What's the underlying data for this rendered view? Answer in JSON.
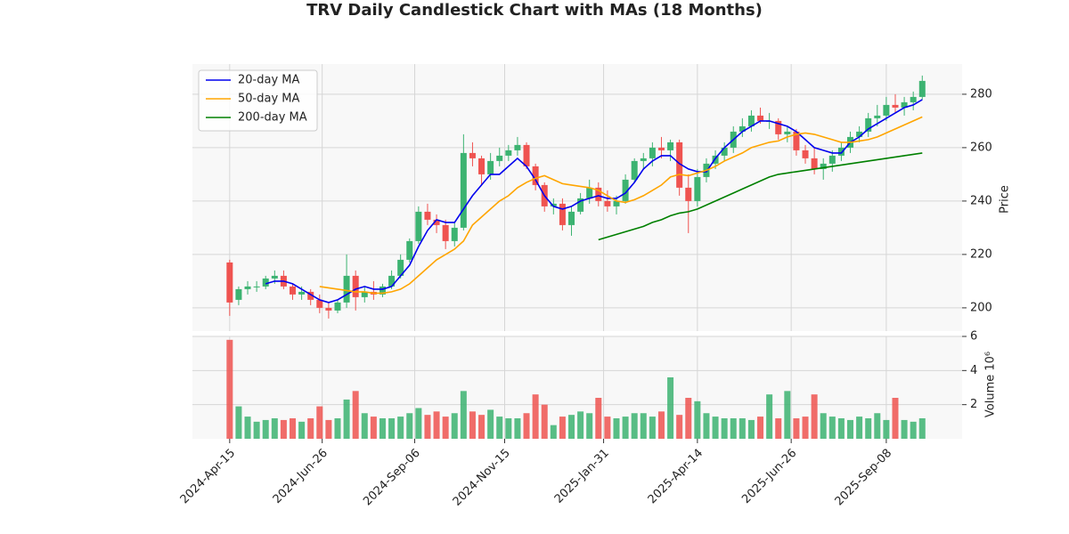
{
  "chart_data": {
    "type": "candlestick",
    "title": "TRV Daily Candlestick Chart with MAs (18 Months)",
    "y_label": "Price",
    "volume_label": "Volume  10⁶",
    "up_color": "#3cb371",
    "down_color": "#ef5350",
    "grid": true,
    "legend": "upper left",
    "x": [
      "2024-04-15",
      "2024-04-22",
      "2024-04-29",
      "2024-05-06",
      "2024-05-13",
      "2024-05-20",
      "2024-05-27",
      "2024-06-03",
      "2024-06-10",
      "2024-06-17",
      "2024-06-24",
      "2024-07-01",
      "2024-07-08",
      "2024-07-15",
      "2024-07-22",
      "2024-07-29",
      "2024-08-05",
      "2024-08-12",
      "2024-08-19",
      "2024-08-26",
      "2024-09-02",
      "2024-09-09",
      "2024-09-16",
      "2024-09-23",
      "2024-09-30",
      "2024-10-07",
      "2024-10-14",
      "2024-10-21",
      "2024-10-28",
      "2024-11-04",
      "2024-11-11",
      "2024-11-18",
      "2024-11-25",
      "2024-12-02",
      "2024-12-09",
      "2024-12-16",
      "2024-12-23",
      "2024-12-30",
      "2025-01-06",
      "2025-01-13",
      "2025-01-20",
      "2025-01-27",
      "2025-02-03",
      "2025-02-10",
      "2025-02-17",
      "2025-02-24",
      "2025-03-03",
      "2025-03-10",
      "2025-03-17",
      "2025-03-24",
      "2025-03-31",
      "2025-04-07",
      "2025-04-14",
      "2025-04-21",
      "2025-04-28",
      "2025-05-05",
      "2025-05-12",
      "2025-05-19",
      "2025-05-26",
      "2025-06-02",
      "2025-06-09",
      "2025-06-16",
      "2025-06-23",
      "2025-06-30",
      "2025-07-07",
      "2025-07-14",
      "2025-07-21",
      "2025-07-28",
      "2025-08-04",
      "2025-08-11",
      "2025-08-18",
      "2025-08-25",
      "2025-09-01",
      "2025-09-08",
      "2025-09-15",
      "2025-09-22",
      "2025-09-29",
      "2025-10-06"
    ],
    "open": [
      217,
      203,
      207,
      208,
      208,
      211,
      212,
      208,
      205,
      206,
      203,
      200,
      199,
      202,
      212,
      204,
      206,
      205,
      208,
      212,
      218,
      225,
      236,
      233,
      231,
      225,
      230,
      258,
      256,
      250,
      255,
      257,
      259,
      261,
      253,
      246,
      238,
      239,
      231,
      236,
      241,
      245,
      240,
      238,
      240,
      248,
      255,
      256,
      260,
      259,
      262,
      245,
      240,
      249,
      254,
      257,
      260,
      266,
      268,
      272,
      270,
      270,
      265,
      266,
      259,
      256,
      252,
      254,
      257,
      260,
      264,
      266,
      271,
      272,
      276,
      275,
      277,
      279
    ],
    "high": [
      218,
      208,
      210,
      210,
      212,
      214,
      214,
      209,
      208,
      207,
      205,
      202,
      203,
      220,
      214,
      208,
      210,
      209,
      214,
      220,
      226,
      238,
      239,
      235,
      233,
      232,
      265,
      262,
      257,
      258,
      260,
      261,
      264,
      262,
      254,
      247,
      241,
      241,
      238,
      243,
      248,
      247,
      244,
      242,
      250,
      256,
      258,
      262,
      264,
      263,
      263,
      250,
      252,
      256,
      259,
      262,
      268,
      271,
      274,
      275,
      273,
      271,
      268,
      267,
      261,
      260,
      256,
      259,
      262,
      266,
      268,
      273,
      276,
      279,
      280,
      279,
      281,
      287
    ],
    "low": [
      197,
      201,
      205,
      206,
      207,
      209,
      207,
      203,
      203,
      201,
      198,
      196,
      198,
      200,
      199,
      202,
      203,
      204,
      207,
      211,
      217,
      224,
      231,
      228,
      222,
      223,
      229,
      253,
      246,
      248,
      253,
      255,
      257,
      252,
      244,
      236,
      235,
      229,
      227,
      235,
      239,
      238,
      236,
      235,
      239,
      247,
      252,
      253,
      256,
      255,
      242,
      228,
      238,
      247,
      252,
      255,
      258,
      264,
      266,
      269,
      267,
      263,
      262,
      257,
      254,
      250,
      248,
      251,
      255,
      258,
      262,
      264,
      268,
      270,
      273,
      272,
      274,
      278
    ],
    "close": [
      202,
      207,
      208,
      208,
      211,
      212,
      208,
      205,
      206,
      203,
      200,
      199,
      202,
      212,
      204,
      206,
      205,
      208,
      212,
      218,
      225,
      236,
      233,
      231,
      225,
      230,
      258,
      256,
      250,
      255,
      257,
      259,
      261,
      253,
      246,
      238,
      239,
      231,
      236,
      241,
      245,
      240,
      238,
      240,
      248,
      255,
      256,
      260,
      259,
      262,
      245,
      240,
      249,
      254,
      257,
      260,
      266,
      268,
      272,
      270,
      270,
      265,
      266,
      259,
      256,
      252,
      254,
      257,
      260,
      264,
      266,
      271,
      272,
      276,
      275,
      277,
      279,
      285
    ],
    "volume": [
      5.8,
      1.9,
      1.3,
      1.0,
      1.1,
      1.2,
      1.1,
      1.2,
      1.0,
      1.2,
      1.9,
      1.1,
      1.2,
      2.3,
      2.8,
      1.5,
      1.3,
      1.2,
      1.2,
      1.3,
      1.5,
      1.8,
      1.4,
      1.6,
      1.3,
      1.5,
      2.8,
      1.6,
      1.4,
      1.7,
      1.3,
      1.2,
      1.2,
      1.5,
      2.6,
      2.0,
      0.8,
      1.3,
      1.4,
      1.6,
      1.5,
      2.4,
      1.3,
      1.2,
      1.3,
      1.5,
      1.5,
      1.3,
      1.6,
      3.6,
      1.4,
      2.4,
      2.2,
      1.5,
      1.3,
      1.2,
      1.2,
      1.2,
      1.1,
      1.3,
      2.6,
      1.2,
      2.8,
      1.2,
      1.3,
      2.6,
      1.5,
      1.3,
      1.2,
      1.1,
      1.3,
      1.2,
      1.5,
      1.1,
      2.4,
      1.1,
      1.0,
      1.2
    ],
    "series": [
      {
        "name": "20-day MA",
        "color": "#0000ee",
        "values": [
          null,
          null,
          null,
          null,
          209,
          210,
          210,
          209,
          207,
          205,
          203,
          202,
          203,
          205,
          207,
          208,
          207,
          207,
          208,
          212,
          216,
          223,
          229,
          233,
          232,
          232,
          237,
          242,
          246,
          250,
          250,
          253,
          256,
          253,
          248,
          242,
          238,
          237,
          238,
          240,
          241,
          242,
          241,
          241,
          243,
          247,
          252,
          255,
          257,
          257,
          254,
          252,
          251,
          251,
          256,
          260,
          263,
          266,
          268,
          270,
          270,
          269,
          268,
          266,
          263,
          260,
          259,
          258,
          258,
          262,
          264,
          267,
          269,
          271,
          273,
          275,
          276,
          278
        ]
      },
      {
        "name": "50-day MA",
        "color": "#ffa500",
        "values": [
          null,
          null,
          null,
          null,
          null,
          null,
          null,
          null,
          null,
          null,
          208,
          207.5,
          207,
          206.5,
          206,
          206,
          205.5,
          205.5,
          206,
          207,
          209,
          212,
          215,
          218,
          220,
          222,
          225,
          231,
          234,
          237,
          240,
          242,
          245,
          247,
          248.5,
          249.5,
          248,
          246.5,
          246,
          245.5,
          245,
          244,
          242,
          240,
          239.5,
          240.5,
          242,
          244,
          246,
          249,
          250,
          249.5,
          250.5,
          251.5,
          253,
          255,
          256.5,
          258,
          260,
          261,
          262,
          262.5,
          264,
          265,
          265.5,
          265,
          264,
          263,
          262,
          262,
          262.5,
          263,
          264,
          265.5,
          267,
          268.5,
          270,
          271.5
        ]
      },
      {
        "name": "200-day MA",
        "color": "#008000",
        "values": [
          null,
          null,
          null,
          null,
          null,
          null,
          null,
          null,
          null,
          null,
          null,
          null,
          null,
          null,
          null,
          null,
          null,
          null,
          null,
          null,
          null,
          null,
          null,
          null,
          null,
          null,
          null,
          null,
          null,
          null,
          null,
          null,
          null,
          null,
          null,
          null,
          null,
          null,
          null,
          null,
          null,
          225.5,
          226.5,
          227.5,
          228.5,
          229.5,
          230.5,
          232,
          233,
          234.5,
          235.5,
          236,
          237,
          238.5,
          240,
          241.5,
          243,
          244.5,
          246,
          247.5,
          249,
          250,
          250.5,
          251,
          251.5,
          252,
          252.5,
          253,
          253.5,
          254,
          254.5,
          255,
          255.5,
          256,
          256.5,
          257,
          257.5,
          258
        ]
      }
    ],
    "xlim": [
      "2024-03-17",
      "2025-11-06"
    ],
    "xticks": [
      {
        "value": "2024-04-15",
        "label": "2024-Apr-15"
      },
      {
        "value": "2024-06-26",
        "label": "2024-Jun-26"
      },
      {
        "value": "2024-09-06",
        "label": "2024-Sep-06"
      },
      {
        "value": "2024-11-15",
        "label": "2024-Nov-15"
      },
      {
        "value": "2025-01-31",
        "label": "2025-Jan-31"
      },
      {
        "value": "2025-04-14",
        "label": "2025-Apr-14"
      },
      {
        "value": "2025-06-26",
        "label": "2025-Jun-26"
      },
      {
        "value": "2025-09-08",
        "label": "2025-Sep-08"
      }
    ],
    "ylim": [
      191.3,
      291.3
    ],
    "yticks": [
      200,
      220,
      240,
      260,
      280
    ],
    "volume_ylim": [
      0,
      6
    ],
    "volume_yticks": [
      2,
      4,
      6
    ]
  }
}
